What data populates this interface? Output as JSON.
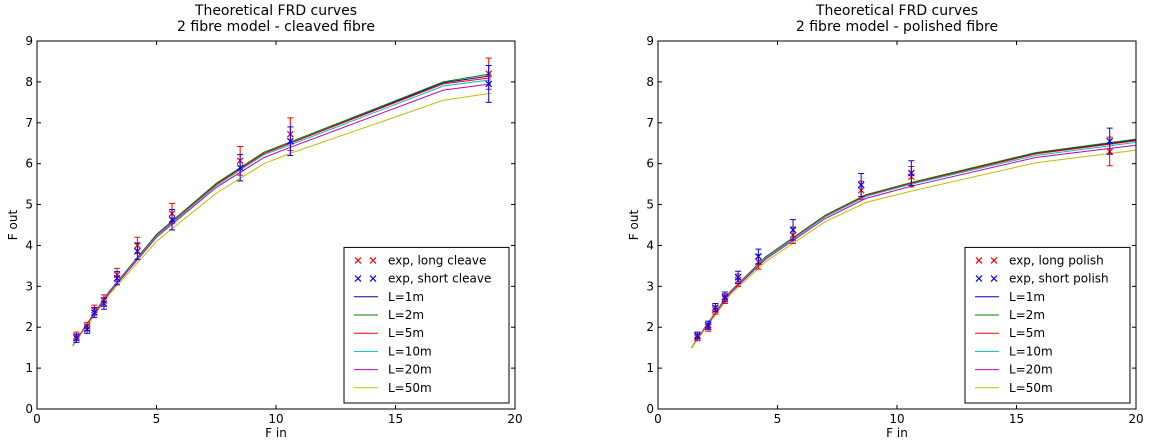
{
  "chart_data": [
    {
      "type": "line",
      "title": "Theoretical FRD curves",
      "subtitle": "2 fibre model - cleaved fibre",
      "xlabel": "F in",
      "ylabel": "F out",
      "xlim": [
        0,
        20
      ],
      "ylim": [
        0,
        9
      ],
      "xticks": [
        "0",
        "5",
        "10",
        "15",
        "20"
      ],
      "yticks": [
        "0",
        "1",
        "2",
        "3",
        "4",
        "5",
        "6",
        "7",
        "8",
        "9"
      ],
      "grid": false,
      "legend_position": "lower-right",
      "points": [
        {
          "name": "exp, long cleave",
          "color": "#ff0000",
          "x": [
            1.65,
            2.1,
            2.4,
            2.8,
            3.35,
            4.2,
            5.65,
            8.5,
            10.6,
            18.9
          ],
          "y": [
            1.78,
            2.02,
            2.42,
            2.65,
            3.28,
            4.0,
            4.78,
            6.07,
            6.72,
            8.2
          ],
          "err": [
            0.1,
            0.1,
            0.12,
            0.14,
            0.16,
            0.2,
            0.25,
            0.35,
            0.4,
            0.38
          ]
        },
        {
          "name": "exp, short cleave",
          "color": "#0000ff",
          "x": [
            1.65,
            2.1,
            2.4,
            2.8,
            3.35,
            4.2,
            5.65,
            8.5,
            10.6,
            18.9
          ],
          "y": [
            1.73,
            1.95,
            2.36,
            2.58,
            3.2,
            3.86,
            4.63,
            5.9,
            6.55,
            7.95
          ],
          "err": [
            0.1,
            0.1,
            0.12,
            0.14,
            0.16,
            0.2,
            0.25,
            0.32,
            0.35,
            0.45
          ]
        }
      ],
      "series": [
        {
          "name": "L=1m",
          "color": "#0000bf",
          "x": [
            1.5,
            2.0,
            3.0,
            5.0,
            7.5,
            9.5,
            10.6,
            17.0,
            19.0
          ],
          "y": [
            1.55,
            2.0,
            2.85,
            4.25,
            5.5,
            6.25,
            6.5,
            7.98,
            8.15
          ]
        },
        {
          "name": "L=2m",
          "color": "#007f00",
          "x": [
            1.5,
            2.0,
            3.0,
            5.0,
            7.5,
            9.5,
            10.6,
            17.0,
            19.0
          ],
          "y": [
            1.55,
            2.0,
            2.86,
            4.27,
            5.52,
            6.28,
            6.53,
            8.0,
            8.2
          ]
        },
        {
          "name": "L=5m",
          "color": "#ff0000",
          "x": [
            1.5,
            2.0,
            3.0,
            5.0,
            7.5,
            9.5,
            10.6,
            17.0,
            19.0
          ],
          "y": [
            1.55,
            2.0,
            2.85,
            4.25,
            5.49,
            6.25,
            6.5,
            7.95,
            8.1
          ]
        },
        {
          "name": "L=10m",
          "color": "#00bfbf",
          "x": [
            1.5,
            2.0,
            3.0,
            5.0,
            7.5,
            9.5,
            10.6,
            17.0,
            19.0
          ],
          "y": [
            1.55,
            1.99,
            2.84,
            4.23,
            5.46,
            6.22,
            6.46,
            7.9,
            8.05
          ]
        },
        {
          "name": "L=20m",
          "color": "#bf00bf",
          "x": [
            1.5,
            2.0,
            3.0,
            5.0,
            7.5,
            9.5,
            10.6,
            17.0,
            19.0
          ],
          "y": [
            1.54,
            1.98,
            2.82,
            4.2,
            5.42,
            6.15,
            6.4,
            7.8,
            7.95
          ]
        },
        {
          "name": "L=50m",
          "color": "#bfbf00",
          "x": [
            1.5,
            2.0,
            3.0,
            5.0,
            7.5,
            9.5,
            10.6,
            17.0,
            19.0
          ],
          "y": [
            1.53,
            1.96,
            2.78,
            4.1,
            5.28,
            6.0,
            6.25,
            7.55,
            7.72
          ]
        }
      ]
    },
    {
      "type": "line",
      "title": "Theoretical FRD curves",
      "subtitle": "2 fibre model - polished fibre",
      "xlabel": "F in",
      "ylabel": "F out",
      "xlim": [
        0,
        20
      ],
      "ylim": [
        0,
        9
      ],
      "xticks": [
        "0",
        "5",
        "10",
        "15",
        "20"
      ],
      "yticks": [
        "0",
        "1",
        "2",
        "3",
        "4",
        "5",
        "6",
        "7",
        "8",
        "9"
      ],
      "grid": false,
      "legend_position": "lower-right",
      "points": [
        {
          "name": "exp, long polish",
          "color": "#ff0000",
          "x": [
            1.65,
            2.1,
            2.4,
            2.8,
            3.35,
            4.2,
            5.65,
            8.5,
            10.6,
            18.9
          ],
          "y": [
            1.75,
            2.0,
            2.42,
            2.7,
            3.15,
            3.6,
            4.25,
            5.35,
            5.68,
            6.3
          ],
          "err": [
            0.08,
            0.1,
            0.1,
            0.12,
            0.15,
            0.18,
            0.2,
            0.22,
            0.25,
            0.35
          ]
        },
        {
          "name": "exp, short polish",
          "color": "#0000ff",
          "x": [
            1.65,
            2.1,
            2.4,
            2.8,
            3.35,
            4.2,
            5.65,
            8.5,
            10.6,
            18.9
          ],
          "y": [
            1.8,
            2.05,
            2.48,
            2.74,
            3.22,
            3.73,
            4.38,
            5.48,
            5.77,
            6.55
          ],
          "err": [
            0.08,
            0.1,
            0.1,
            0.12,
            0.15,
            0.18,
            0.25,
            0.28,
            0.3,
            0.32
          ]
        }
      ],
      "series": [
        {
          "name": "L=1m",
          "color": "#0000bf",
          "x": [
            1.4,
            2.0,
            3.0,
            4.5,
            7.0,
            8.7,
            10.6,
            15.8,
            20.0
          ],
          "y": [
            1.5,
            2.02,
            2.85,
            3.7,
            4.72,
            5.22,
            5.52,
            6.25,
            6.58
          ]
        },
        {
          "name": "L=2m",
          "color": "#007f00",
          "x": [
            1.4,
            2.0,
            3.0,
            4.5,
            7.0,
            8.7,
            10.6,
            15.8,
            20.0
          ],
          "y": [
            1.5,
            2.02,
            2.86,
            3.72,
            4.74,
            5.24,
            5.54,
            6.27,
            6.6
          ]
        },
        {
          "name": "L=5m",
          "color": "#ff0000",
          "x": [
            1.4,
            2.0,
            3.0,
            4.5,
            7.0,
            8.7,
            10.6,
            15.8,
            20.0
          ],
          "y": [
            1.5,
            2.02,
            2.85,
            3.7,
            4.72,
            5.22,
            5.52,
            6.24,
            6.56
          ]
        },
        {
          "name": "L=10m",
          "color": "#00bfbf",
          "x": [
            1.4,
            2.0,
            3.0,
            4.5,
            7.0,
            8.7,
            10.6,
            15.8,
            20.0
          ],
          "y": [
            1.5,
            2.01,
            2.84,
            3.69,
            4.7,
            5.2,
            5.5,
            6.2,
            6.52
          ]
        },
        {
          "name": "L=20m",
          "color": "#bf00bf",
          "x": [
            1.4,
            2.0,
            3.0,
            4.5,
            7.0,
            8.7,
            10.6,
            15.8,
            20.0
          ],
          "y": [
            1.5,
            2.0,
            2.82,
            3.66,
            4.66,
            5.15,
            5.45,
            6.15,
            6.45
          ]
        },
        {
          "name": "L=50m",
          "color": "#bfbf00",
          "x": [
            1.4,
            2.0,
            3.0,
            4.5,
            7.0,
            8.7,
            10.6,
            15.8,
            20.0
          ],
          "y": [
            1.49,
            1.98,
            2.78,
            3.6,
            4.58,
            5.05,
            5.33,
            6.02,
            6.33
          ]
        }
      ]
    }
  ]
}
